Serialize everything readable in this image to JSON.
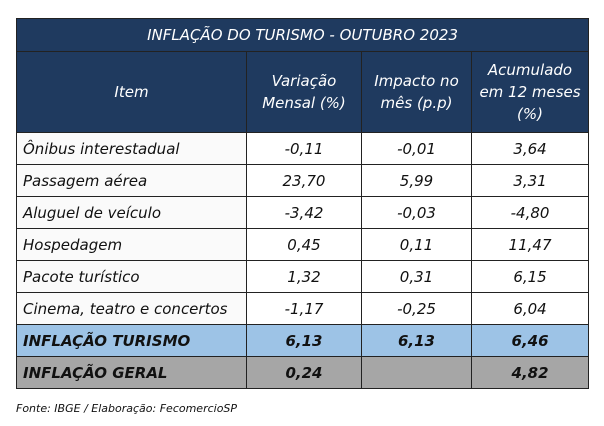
{
  "table": {
    "title": "INFLAÇÃO DO TURISMO - OUTUBRO 2023",
    "columns": [
      "Item",
      "Variação Mensal (%)",
      "Impacto no mês (p.p)",
      "Acumulado em 12 meses (%)"
    ],
    "rows": [
      {
        "item": "Ônibus interestadual",
        "values": [
          "-0,11",
          "-0,01",
          "3,64"
        ]
      },
      {
        "item": "Passagem aérea",
        "values": [
          "23,70",
          "5,99",
          "3,31"
        ]
      },
      {
        "item": "Aluguel de veículo",
        "values": [
          "-3,42",
          "-0,03",
          "-4,80"
        ]
      },
      {
        "item": "Hospedagem",
        "values": [
          "0,45",
          "0,11",
          "11,47"
        ]
      },
      {
        "item": "Pacote turístico",
        "values": [
          "1,32",
          "0,31",
          "6,15"
        ]
      },
      {
        "item": "Cinema, teatro e concertos",
        "values": [
          "-1,17",
          "-0,25",
          "6,04"
        ]
      },
      {
        "item": "INFLAÇÃO TURISMO",
        "values": [
          "6,13",
          "6,13",
          "6,46"
        ],
        "style": "turismo"
      },
      {
        "item": "INFLAÇÃO GERAL",
        "values": [
          "0,24",
          null,
          "4,82"
        ],
        "style": "geral"
      }
    ],
    "source": "Fonte: IBGE / Elaboração: FecomercioSP"
  }
}
